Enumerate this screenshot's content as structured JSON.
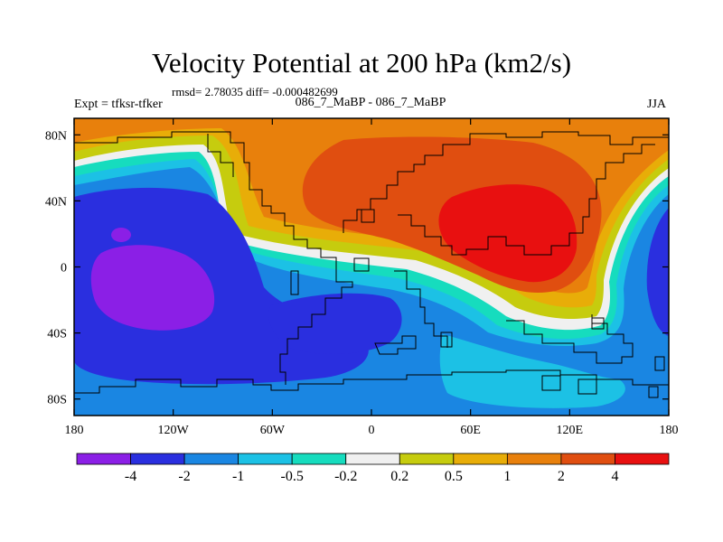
{
  "chart_data": {
    "type": "heatmap",
    "title": "Velocity Potential at 200 hPa (km2/s)",
    "stats_line": "rmsd= 2.78035 diff= -0.000482699",
    "left_label": "Expt = tfksr-tfker",
    "center_label": "086_7_MaBP - 086_7_MaBP",
    "right_label": "JJA",
    "xlabel": "",
    "ylabel": "",
    "x_range": [
      -180,
      180
    ],
    "y_range": [
      -90,
      90
    ],
    "x_ticks": [
      {
        "value": -180,
        "label": "180"
      },
      {
        "value": -120,
        "label": "120W"
      },
      {
        "value": -60,
        "label": "60W"
      },
      {
        "value": 0,
        "label": "0"
      },
      {
        "value": 60,
        "label": "60E"
      },
      {
        "value": 120,
        "label": "120E"
      },
      {
        "value": 180,
        "label": "180"
      }
    ],
    "y_ticks": [
      {
        "value": 80,
        "label": "80N"
      },
      {
        "value": 40,
        "label": "40N"
      },
      {
        "value": 0,
        "label": "0"
      },
      {
        "value": -40,
        "label": "40S"
      },
      {
        "value": -80,
        "label": "80S"
      }
    ],
    "colorbar": {
      "boundaries": [
        "-4",
        "-2",
        "-1",
        "-0.5",
        "-0.2",
        "0.2",
        "0.5",
        "1",
        "2",
        "4"
      ],
      "colors": [
        "#8b1fe6",
        "#2a2fdf",
        "#1a86e2",
        "#1cc1e5",
        "#16dcbe",
        "#f0f0f0",
        "#c6cc0e",
        "#e8ad08",
        "#e8800c",
        "#e04e10",
        "#e81010"
      ]
    },
    "field_regions": [
      {
        "level": "1 to 2",
        "color": "#e8800c",
        "desc": "broad positive band across northern hemisphere"
      },
      {
        "level": "2 to 4",
        "color": "#e04e10",
        "desc": "large positive region over Europe and Asia"
      },
      {
        "level": "> 4",
        "color": "#e81010",
        "desc": "maximum over Asia near 90E 25N"
      },
      {
        "level": "-1 to -2",
        "color": "#1a86e2",
        "desc": "negative region over Pacific and southern oceans"
      },
      {
        "level": "-2 to -4",
        "color": "#2a2fdf",
        "desc": "strong negative over central Pacific and South Atlantic"
      },
      {
        "level": "< -4",
        "color": "#8b1fe6",
        "desc": "minimum over central Pacific near 150W 15S"
      }
    ]
  }
}
